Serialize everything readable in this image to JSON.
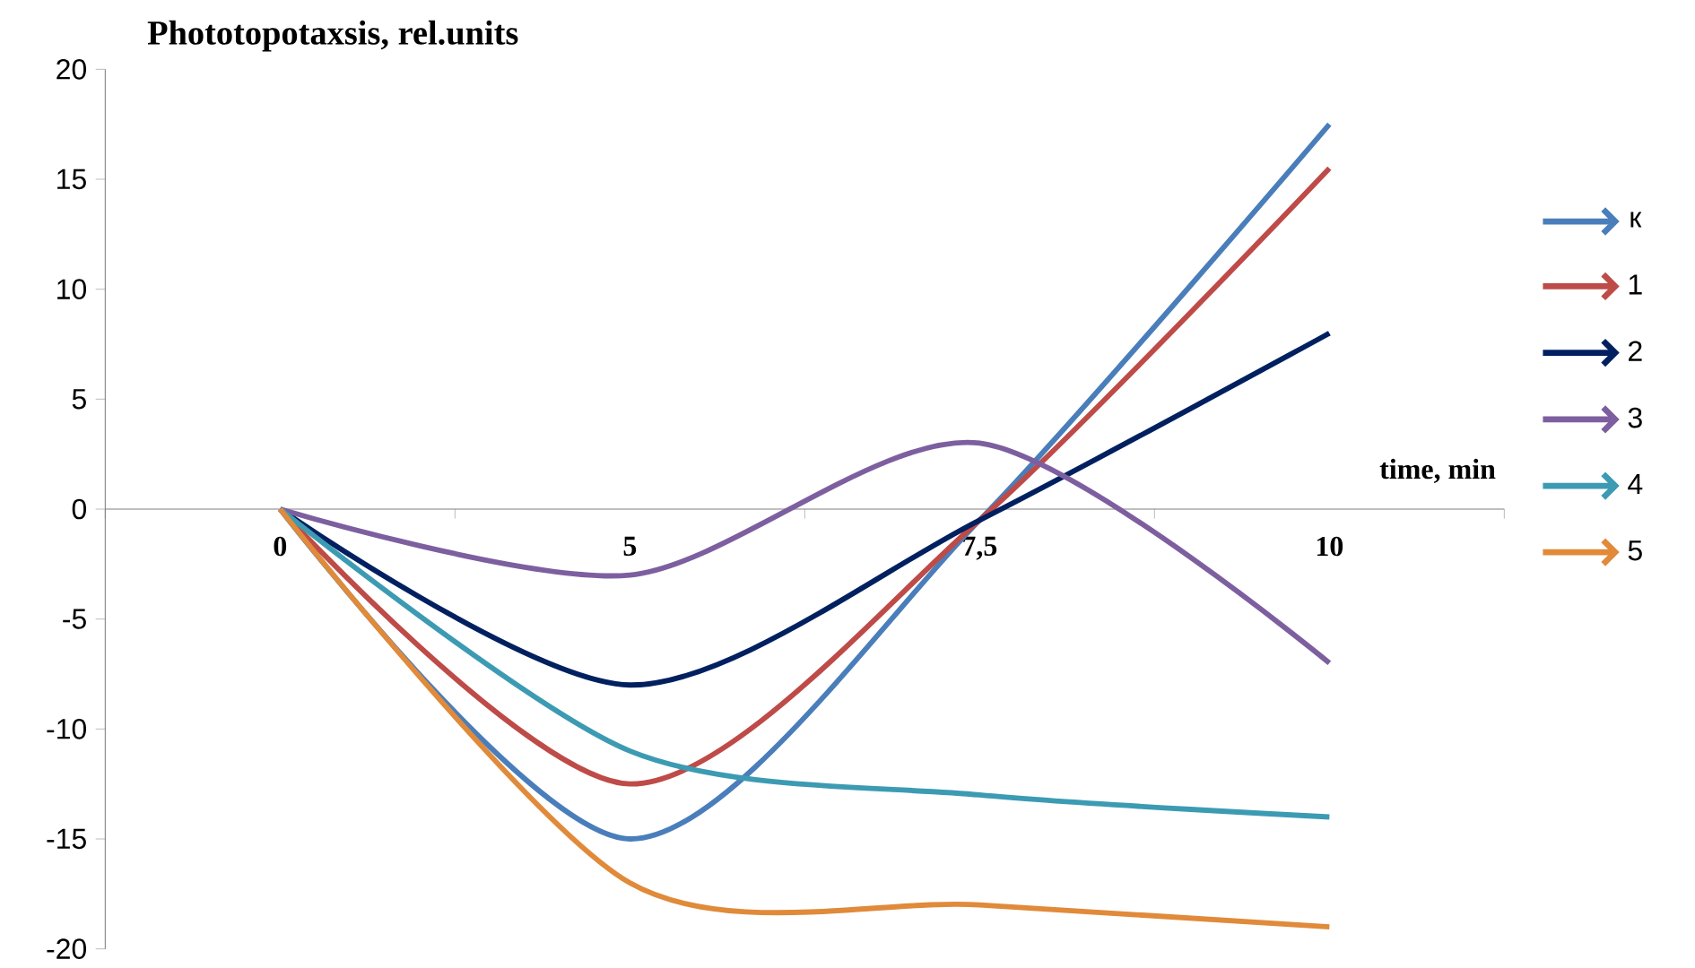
{
  "chart_data": {
    "type": "line",
    "title": "Phototopotaxsis, rel.units",
    "xlabel": "time, min",
    "categories": [
      "0",
      "5",
      "7,5",
      "10"
    ],
    "ylim": [
      -20,
      20
    ],
    "yticks": [
      -20,
      -15,
      -10,
      -5,
      0,
      5,
      10,
      15,
      20
    ],
    "grid": false,
    "legend": "right",
    "marker": "none",
    "line_style": "solid",
    "series": [
      {
        "name": "к",
        "color": "#4a7ebb",
        "values": [
          0,
          -15,
          -0.5,
          17.5
        ]
      },
      {
        "name": "1",
        "color": "#be4b48",
        "values": [
          0,
          -12.5,
          -0.5,
          15.5
        ]
      },
      {
        "name": "2",
        "color": "#002060",
        "values": [
          0,
          -8,
          -0.5,
          8
        ]
      },
      {
        "name": "3",
        "color": "#7d5fa0",
        "values": [
          0,
          -3,
          3,
          -7
        ]
      },
      {
        "name": "4",
        "color": "#3c9bb3",
        "values": [
          0,
          -11,
          -13,
          -14
        ]
      },
      {
        "name": "5",
        "color": "#e08a3a",
        "values": [
          0,
          -17,
          -18,
          -19
        ]
      }
    ]
  }
}
